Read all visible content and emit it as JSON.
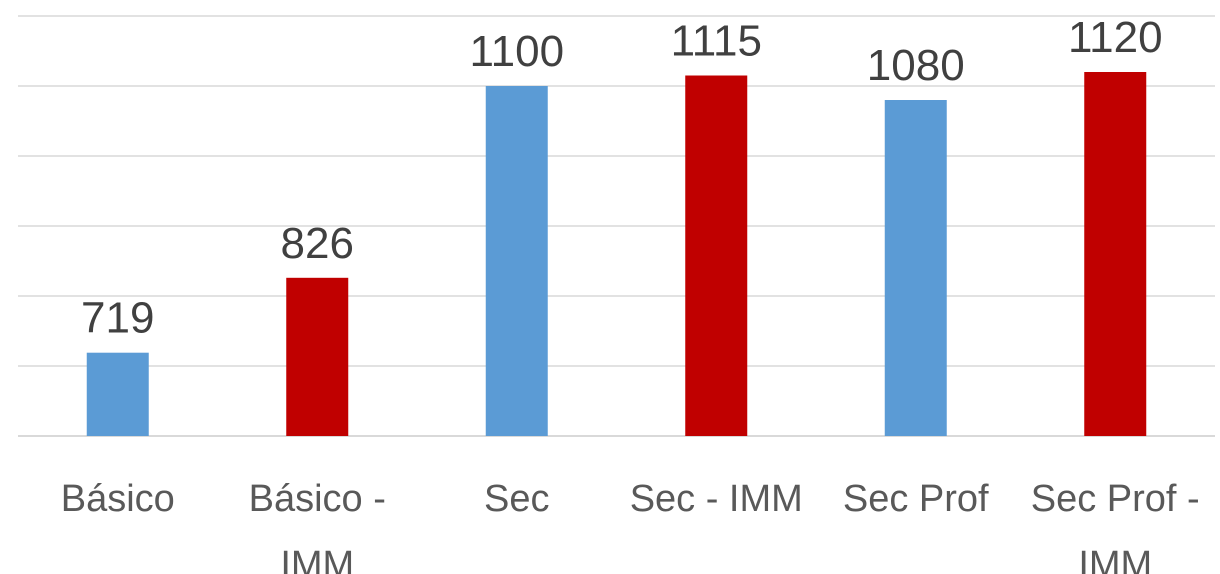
{
  "chart_data": {
    "type": "bar",
    "categories": [
      [
        "Básico"
      ],
      [
        "Básico -",
        "IMM"
      ],
      [
        "Sec"
      ],
      [
        "Sec - IMM"
      ],
      [
        "Sec Prof"
      ],
      [
        "Sec Prof -",
        "IMM"
      ]
    ],
    "values": [
      719,
      826,
      1100,
      1115,
      1080,
      1120
    ],
    "bar_colors": [
      "#5b9bd5",
      "#c00000",
      "#5b9bd5",
      "#c00000",
      "#5b9bd5",
      "#c00000"
    ],
    "ylim": [
      600,
      1200
    ],
    "gridlines": [
      600,
      700,
      800,
      900,
      1000,
      1100,
      1200
    ],
    "grid": true,
    "legend": "none",
    "axis_tick_labels_visible": false
  }
}
